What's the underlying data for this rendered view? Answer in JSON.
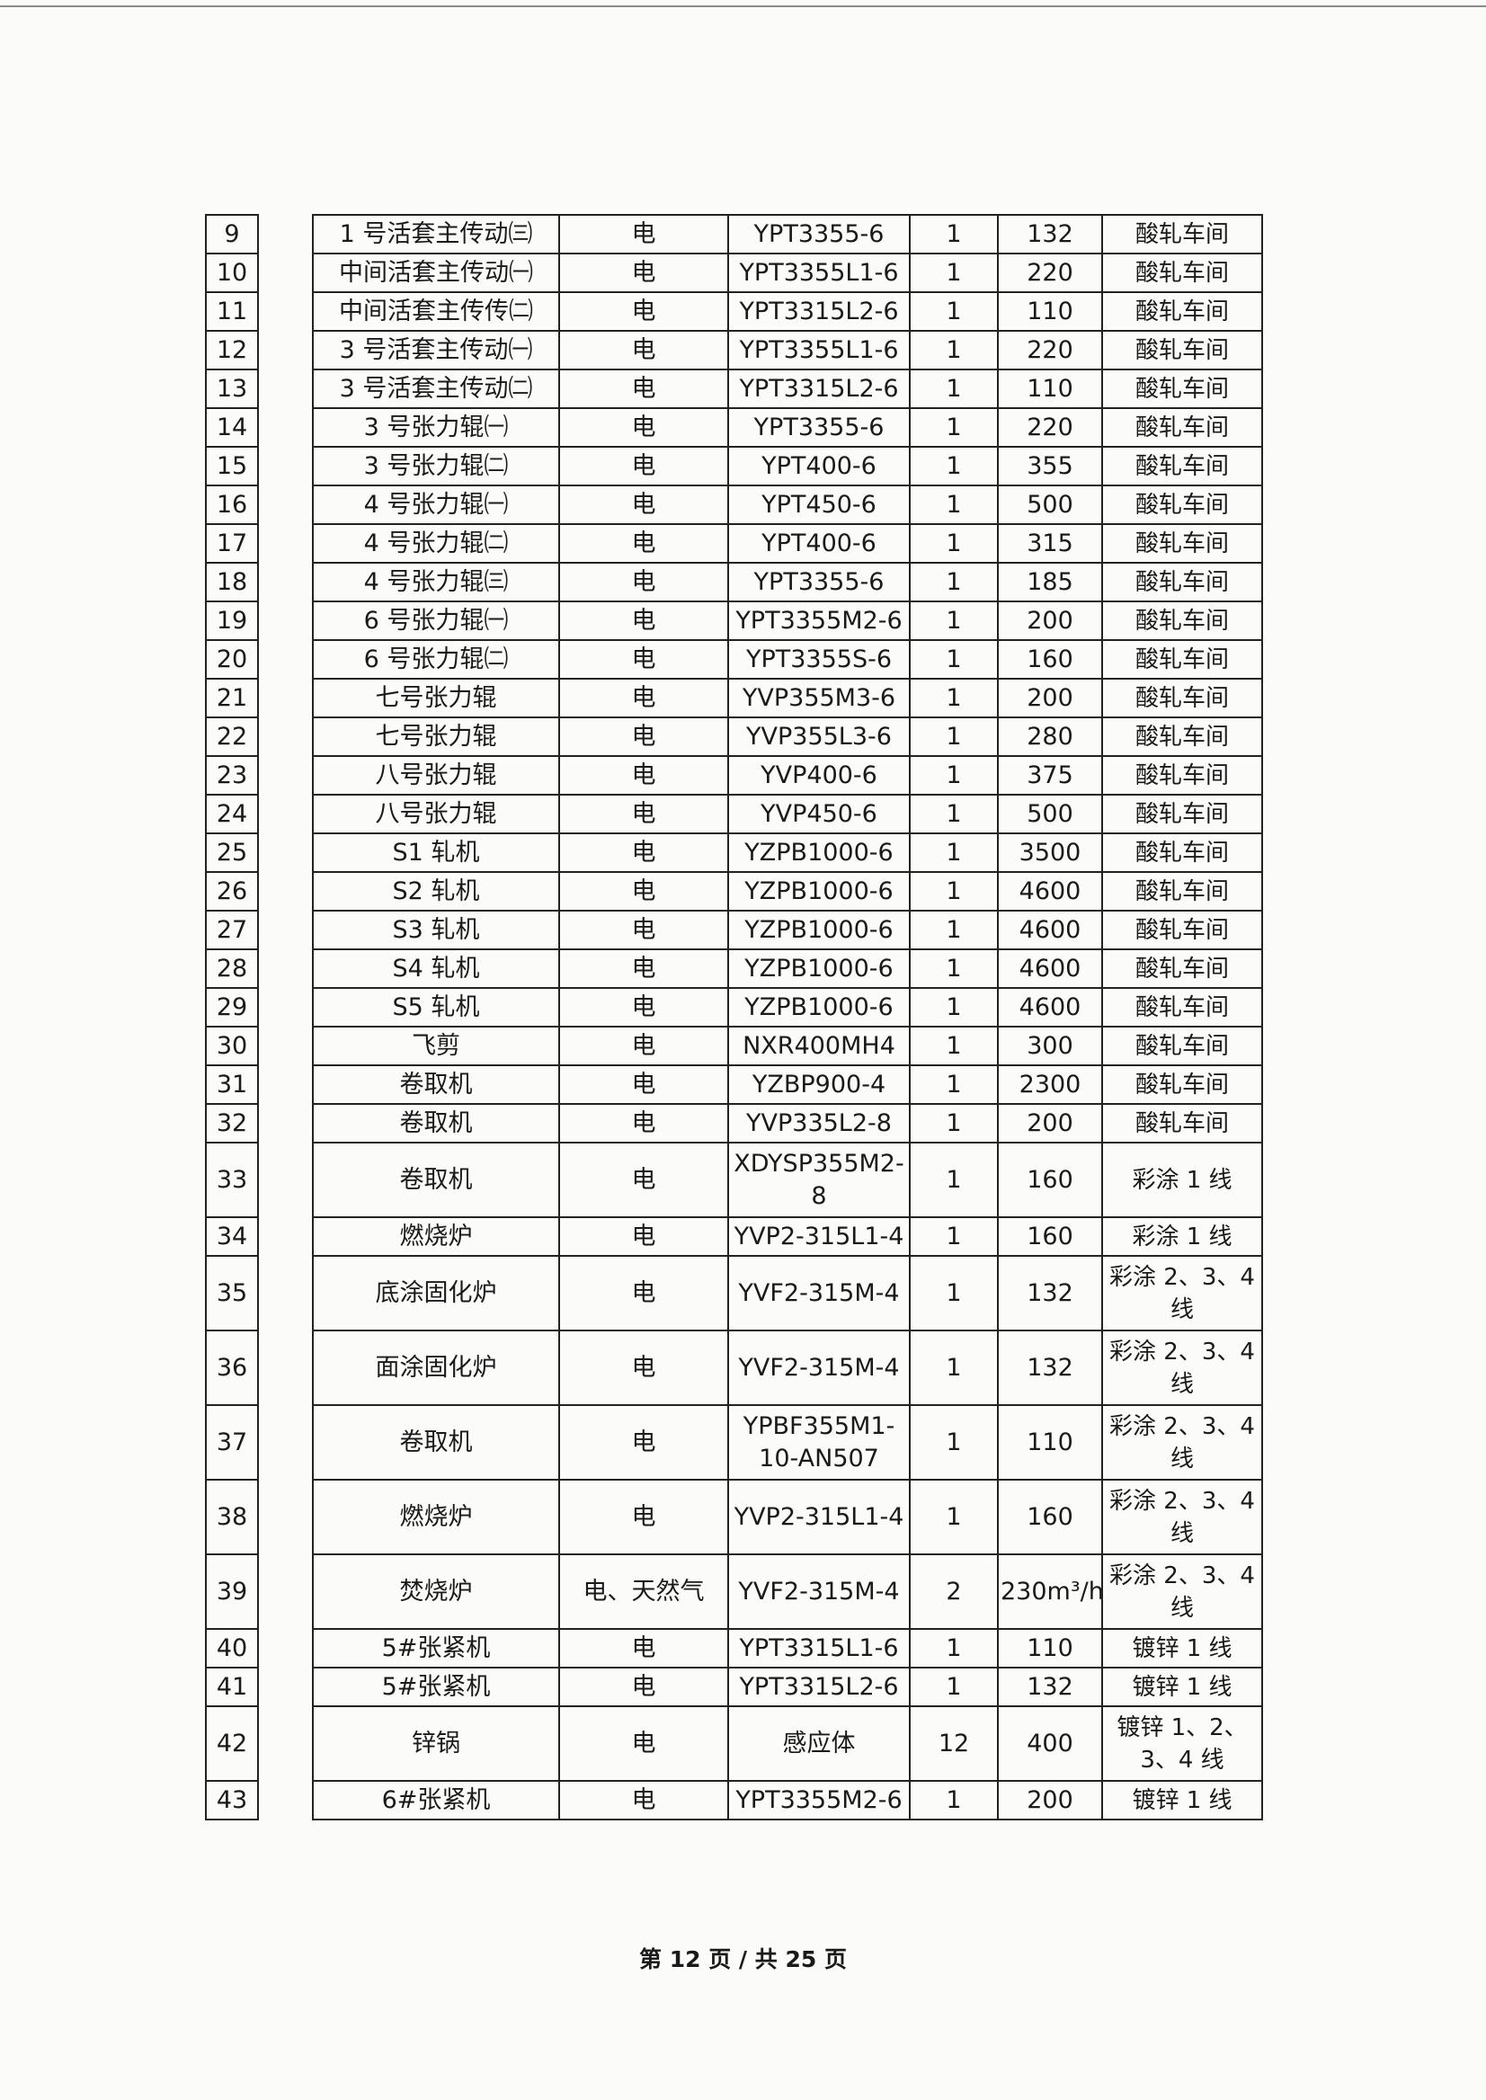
{
  "rows": [
    {
      "no": "9",
      "name": "1 号活套主传动㈢",
      "energy": "电",
      "model": "YPT3355-6",
      "qty": "1",
      "power": "132",
      "location": "酸轧车间"
    },
    {
      "no": "10",
      "name": "中间活套主传动㈠",
      "energy": "电",
      "model": "YPT3355L1-6",
      "qty": "1",
      "power": "220",
      "location": "酸轧车间"
    },
    {
      "no": "11",
      "name": "中间活套主传传㈡",
      "energy": "电",
      "model": "YPT3315L2-6",
      "qty": "1",
      "power": "110",
      "location": "酸轧车间"
    },
    {
      "no": "12",
      "name": "3 号活套主传动㈠",
      "energy": "电",
      "model": "YPT3355L1-6",
      "qty": "1",
      "power": "220",
      "location": "酸轧车间"
    },
    {
      "no": "13",
      "name": "3 号活套主传动㈡",
      "energy": "电",
      "model": "YPT3315L2-6",
      "qty": "1",
      "power": "110",
      "location": "酸轧车间"
    },
    {
      "no": "14",
      "name": "3 号张力辊㈠",
      "energy": "电",
      "model": "YPT3355-6",
      "qty": "1",
      "power": "220",
      "location": "酸轧车间"
    },
    {
      "no": "15",
      "name": "3 号张力辊㈡",
      "energy": "电",
      "model": "YPT400-6",
      "qty": "1",
      "power": "355",
      "location": "酸轧车间"
    },
    {
      "no": "16",
      "name": "4 号张力辊㈠",
      "energy": "电",
      "model": "YPT450-6",
      "qty": "1",
      "power": "500",
      "location": "酸轧车间"
    },
    {
      "no": "17",
      "name": "4 号张力辊㈡",
      "energy": "电",
      "model": "YPT400-6",
      "qty": "1",
      "power": "315",
      "location": "酸轧车间"
    },
    {
      "no": "18",
      "name": "4 号张力辊㈢",
      "energy": "电",
      "model": "YPT3355-6",
      "qty": "1",
      "power": "185",
      "location": "酸轧车间"
    },
    {
      "no": "19",
      "name": "6 号张力辊㈠",
      "energy": "电",
      "model": "YPT3355M2-6",
      "qty": "1",
      "power": "200",
      "location": "酸轧车间"
    },
    {
      "no": "20",
      "name": "6 号张力辊㈡",
      "energy": "电",
      "model": "YPT3355S-6",
      "qty": "1",
      "power": "160",
      "location": "酸轧车间"
    },
    {
      "no": "21",
      "name": "七号张力辊",
      "energy": "电",
      "model": "YVP355M3-6",
      "qty": "1",
      "power": "200",
      "location": "酸轧车间"
    },
    {
      "no": "22",
      "name": "七号张力辊",
      "energy": "电",
      "model": "YVP355L3-6",
      "qty": "1",
      "power": "280",
      "location": "酸轧车间"
    },
    {
      "no": "23",
      "name": "八号张力辊",
      "energy": "电",
      "model": "YVP400-6",
      "qty": "1",
      "power": "375",
      "location": "酸轧车间"
    },
    {
      "no": "24",
      "name": "八号张力辊",
      "energy": "电",
      "model": "YVP450-6",
      "qty": "1",
      "power": "500",
      "location": "酸轧车间"
    },
    {
      "no": "25",
      "name": "S1 轧机",
      "energy": "电",
      "model": "YZPB1000-6",
      "qty": "1",
      "power": "3500",
      "location": "酸轧车间"
    },
    {
      "no": "26",
      "name": "S2 轧机",
      "energy": "电",
      "model": "YZPB1000-6",
      "qty": "1",
      "power": "4600",
      "location": "酸轧车间"
    },
    {
      "no": "27",
      "name": "S3 轧机",
      "energy": "电",
      "model": "YZPB1000-6",
      "qty": "1",
      "power": "4600",
      "location": "酸轧车间"
    },
    {
      "no": "28",
      "name": "S4 轧机",
      "energy": "电",
      "model": "YZPB1000-6",
      "qty": "1",
      "power": "4600",
      "location": "酸轧车间"
    },
    {
      "no": "29",
      "name": "S5 轧机",
      "energy": "电",
      "model": "YZPB1000-6",
      "qty": "1",
      "power": "4600",
      "location": "酸轧车间"
    },
    {
      "no": "30",
      "name": "飞剪",
      "energy": "电",
      "model": "NXR400MH4",
      "qty": "1",
      "power": "300",
      "location": "酸轧车间"
    },
    {
      "no": "31",
      "name": "卷取机",
      "energy": "电",
      "model": "YZBP900-4",
      "qty": "1",
      "power": "2300",
      "location": "酸轧车间"
    },
    {
      "no": "32",
      "name": "卷取机",
      "energy": "电",
      "model": "YVP335L2-8",
      "qty": "1",
      "power": "200",
      "location": "酸轧车间"
    },
    {
      "no": "33",
      "name": "卷取机",
      "energy": "电",
      "model": "XDYSP355M2-8",
      "qty": "1",
      "power": "160",
      "location": "彩涂 1 线",
      "tall": true
    },
    {
      "no": "34",
      "name": "燃烧炉",
      "energy": "电",
      "model": "YVP2-315L1-4",
      "qty": "1",
      "power": "160",
      "location": "彩涂 1 线"
    },
    {
      "no": "35",
      "name": "底涂固化炉",
      "energy": "电",
      "model": "YVF2-315M-4",
      "qty": "1",
      "power": "132",
      "location": "彩涂 2、3、4 线",
      "tall": true
    },
    {
      "no": "36",
      "name": "面涂固化炉",
      "energy": "电",
      "model": "YVF2-315M-4",
      "qty": "1",
      "power": "132",
      "location": "彩涂 2、3、4 线",
      "tall": true
    },
    {
      "no": "37",
      "name": "卷取机",
      "energy": "电",
      "model": "YPBF355M1-10-AN507",
      "qty": "1",
      "power": "110",
      "location": "彩涂 2、3、4 线",
      "tall": true
    },
    {
      "no": "38",
      "name": "燃烧炉",
      "energy": "电",
      "model": "YVP2-315L1-4",
      "qty": "1",
      "power": "160",
      "location": "彩涂 2、3、4 线",
      "tall": true
    },
    {
      "no": "39",
      "name": "焚烧炉",
      "energy": "电、天然气",
      "model": "YVF2-315M-4",
      "qty": "2",
      "power": "230m³/h",
      "location": "彩涂 2、3、4 线",
      "tall": true
    },
    {
      "no": "40",
      "name": "5#张紧机",
      "energy": "电",
      "model": "YPT3315L1-6",
      "qty": "1",
      "power": "110",
      "location": "镀锌 1 线"
    },
    {
      "no": "41",
      "name": "5#张紧机",
      "energy": "电",
      "model": "YPT3315L2-6",
      "qty": "1",
      "power": "132",
      "location": "镀锌 1 线"
    },
    {
      "no": "42",
      "name": "锌锅",
      "energy": "电",
      "model": "感应体",
      "qty": "12",
      "power": "400",
      "location": "镀锌 1、2、3、4 线",
      "tall": true
    },
    {
      "no": "43",
      "name": "6#张紧机",
      "energy": "电",
      "model": "YPT3355M2-6",
      "qty": "1",
      "power": "200",
      "location": "镀锌 1 线"
    }
  ],
  "footer": {
    "page_label": "第 12 页 / 共 25 页"
  }
}
